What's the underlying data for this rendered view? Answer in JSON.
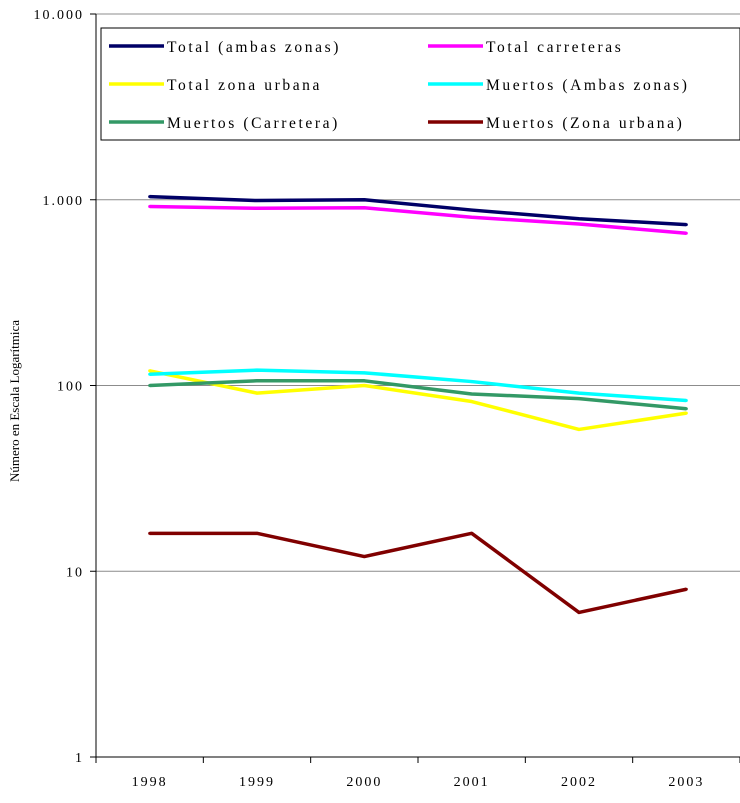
{
  "chart_data": {
    "type": "line",
    "ylabel": "Número en Escala Logarítmica",
    "xlabel": "",
    "y_scale": "log",
    "ylim": [
      1,
      10000
    ],
    "y_ticks": [
      {
        "value": 1,
        "label": "1"
      },
      {
        "value": 10,
        "label": "10"
      },
      {
        "value": 100,
        "label": "100"
      },
      {
        "value": 1000,
        "label": "1.000"
      },
      {
        "value": 10000,
        "label": "10.000"
      }
    ],
    "grid": "horizontal",
    "legend_position": "top",
    "categories": [
      "1998",
      "1999",
      "2000",
      "2001",
      "2002",
      "2003"
    ],
    "series": [
      {
        "name": "Total (ambas zonas)",
        "color": "#000066",
        "values": [
          1040,
          990,
          1000,
          880,
          790,
          735
        ]
      },
      {
        "name": "Total carreteras",
        "color": "#ff00ff",
        "values": [
          920,
          900,
          905,
          805,
          740,
          660
        ]
      },
      {
        "name": "Total zona urbana",
        "color": "#ffff00",
        "values": [
          120,
          91,
          100,
          82,
          58,
          71
        ]
      },
      {
        "name": "Muertos (Ambas zonas)",
        "color": "#00ffff",
        "values": [
          115,
          121,
          117,
          105,
          91,
          83
        ]
      },
      {
        "name": "Muertos (Carretera)",
        "color": "#339966",
        "values": [
          100,
          106,
          106,
          90,
          85,
          75
        ]
      },
      {
        "name": "Muertos (Zona urbana)",
        "color": "#800000",
        "values": [
          16,
          16,
          12,
          16,
          6,
          8
        ]
      }
    ]
  }
}
